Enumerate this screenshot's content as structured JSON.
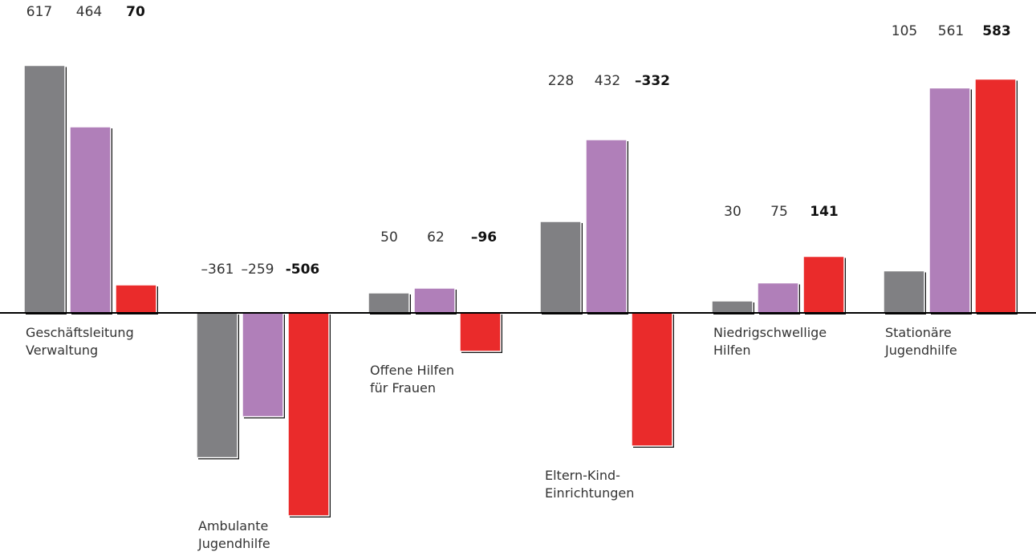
{
  "chart_data": {
    "type": "bar",
    "title": "",
    "xlabel": "",
    "ylabel": "",
    "grid": false,
    "legend": "none",
    "colors": [
      "#808083",
      "#b07fb9",
      "#ea2b2b"
    ],
    "groups": [
      {
        "label": [
          "Geschäftsleitung",
          "Verwaltung"
        ],
        "values": [
          617,
          464,
          70
        ],
        "value_labels": [
          "617",
          "464",
          "70"
        ]
      },
      {
        "label": [
          "Ambulante",
          "Jugendhilfe"
        ],
        "values": [
          -361,
          -259,
          -506
        ],
        "value_labels": [
          "–361",
          "–259",
          "-506"
        ]
      },
      {
        "label": [
          "Offene Hilfen",
          "für Frauen"
        ],
        "values": [
          50,
          62,
          -96
        ],
        "value_labels": [
          "50",
          "62",
          "–96"
        ]
      },
      {
        "label": [
          "Eltern-Kind-",
          "Einrichtungen"
        ],
        "values": [
          228,
          432,
          -332
        ],
        "value_labels": [
          "228",
          "432",
          "–332"
        ]
      },
      {
        "label": [
          "Niedrigschwellige",
          "Hilfen"
        ],
        "values": [
          30,
          75,
          141
        ],
        "value_labels": [
          "30",
          "75",
          "141"
        ]
      },
      {
        "label": [
          "Stationäre",
          "Jugendhilfe"
        ],
        "values": [
          105,
          561,
          583
        ],
        "value_labels": [
          "105",
          "561",
          "583"
        ]
      }
    ]
  }
}
